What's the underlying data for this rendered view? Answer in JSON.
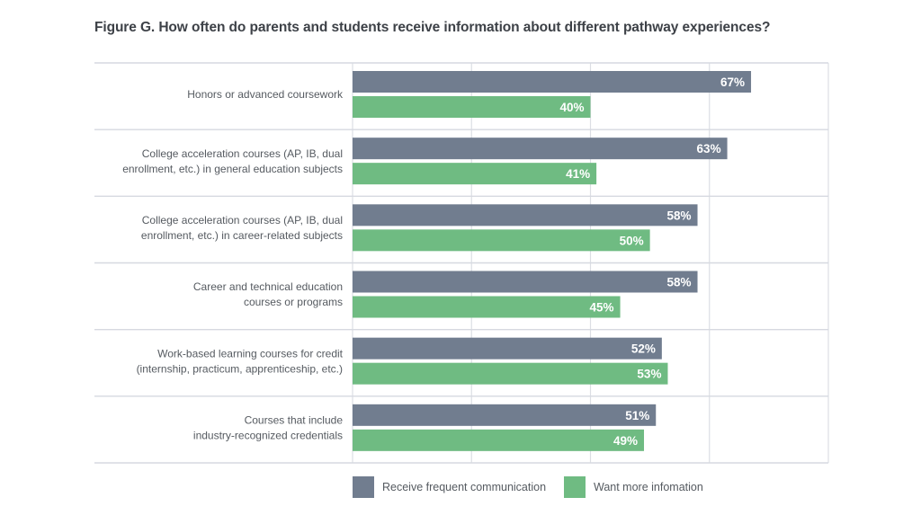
{
  "title": "Figure G. How often do parents and students receive information about different pathway experiences?",
  "chart_data": {
    "type": "bar",
    "orientation": "horizontal",
    "title": "Figure G. How often do parents and students receive information about different pathway experiences?",
    "xlabel": "",
    "ylabel": "",
    "xlim": [
      0,
      80
    ],
    "grid": true,
    "legend_position": "bottom",
    "categories": [
      [
        "Honors or advanced coursework"
      ],
      [
        "College acceleration courses (AP, IB, dual",
        "enrollment, etc.) in general education subjects"
      ],
      [
        "College acceleration courses (AP, IB, dual",
        "enrollment, etc.) in career-related subjects"
      ],
      [
        "Career and technical education",
        "courses or programs"
      ],
      [
        "Work-based learning courses for credit",
        "(internship, practicum, apprenticeship, etc.)"
      ],
      [
        "Courses that include",
        "industry-recognized credentials"
      ]
    ],
    "series": [
      {
        "name": "Receive frequent communication",
        "color": "#717d8f",
        "values": [
          67,
          63,
          58,
          58,
          52,
          51
        ]
      },
      {
        "name": "Want more infomation",
        "color": "#6fbb82",
        "values": [
          40,
          41,
          50,
          45,
          53,
          49
        ]
      }
    ],
    "value_suffix": "%"
  }
}
